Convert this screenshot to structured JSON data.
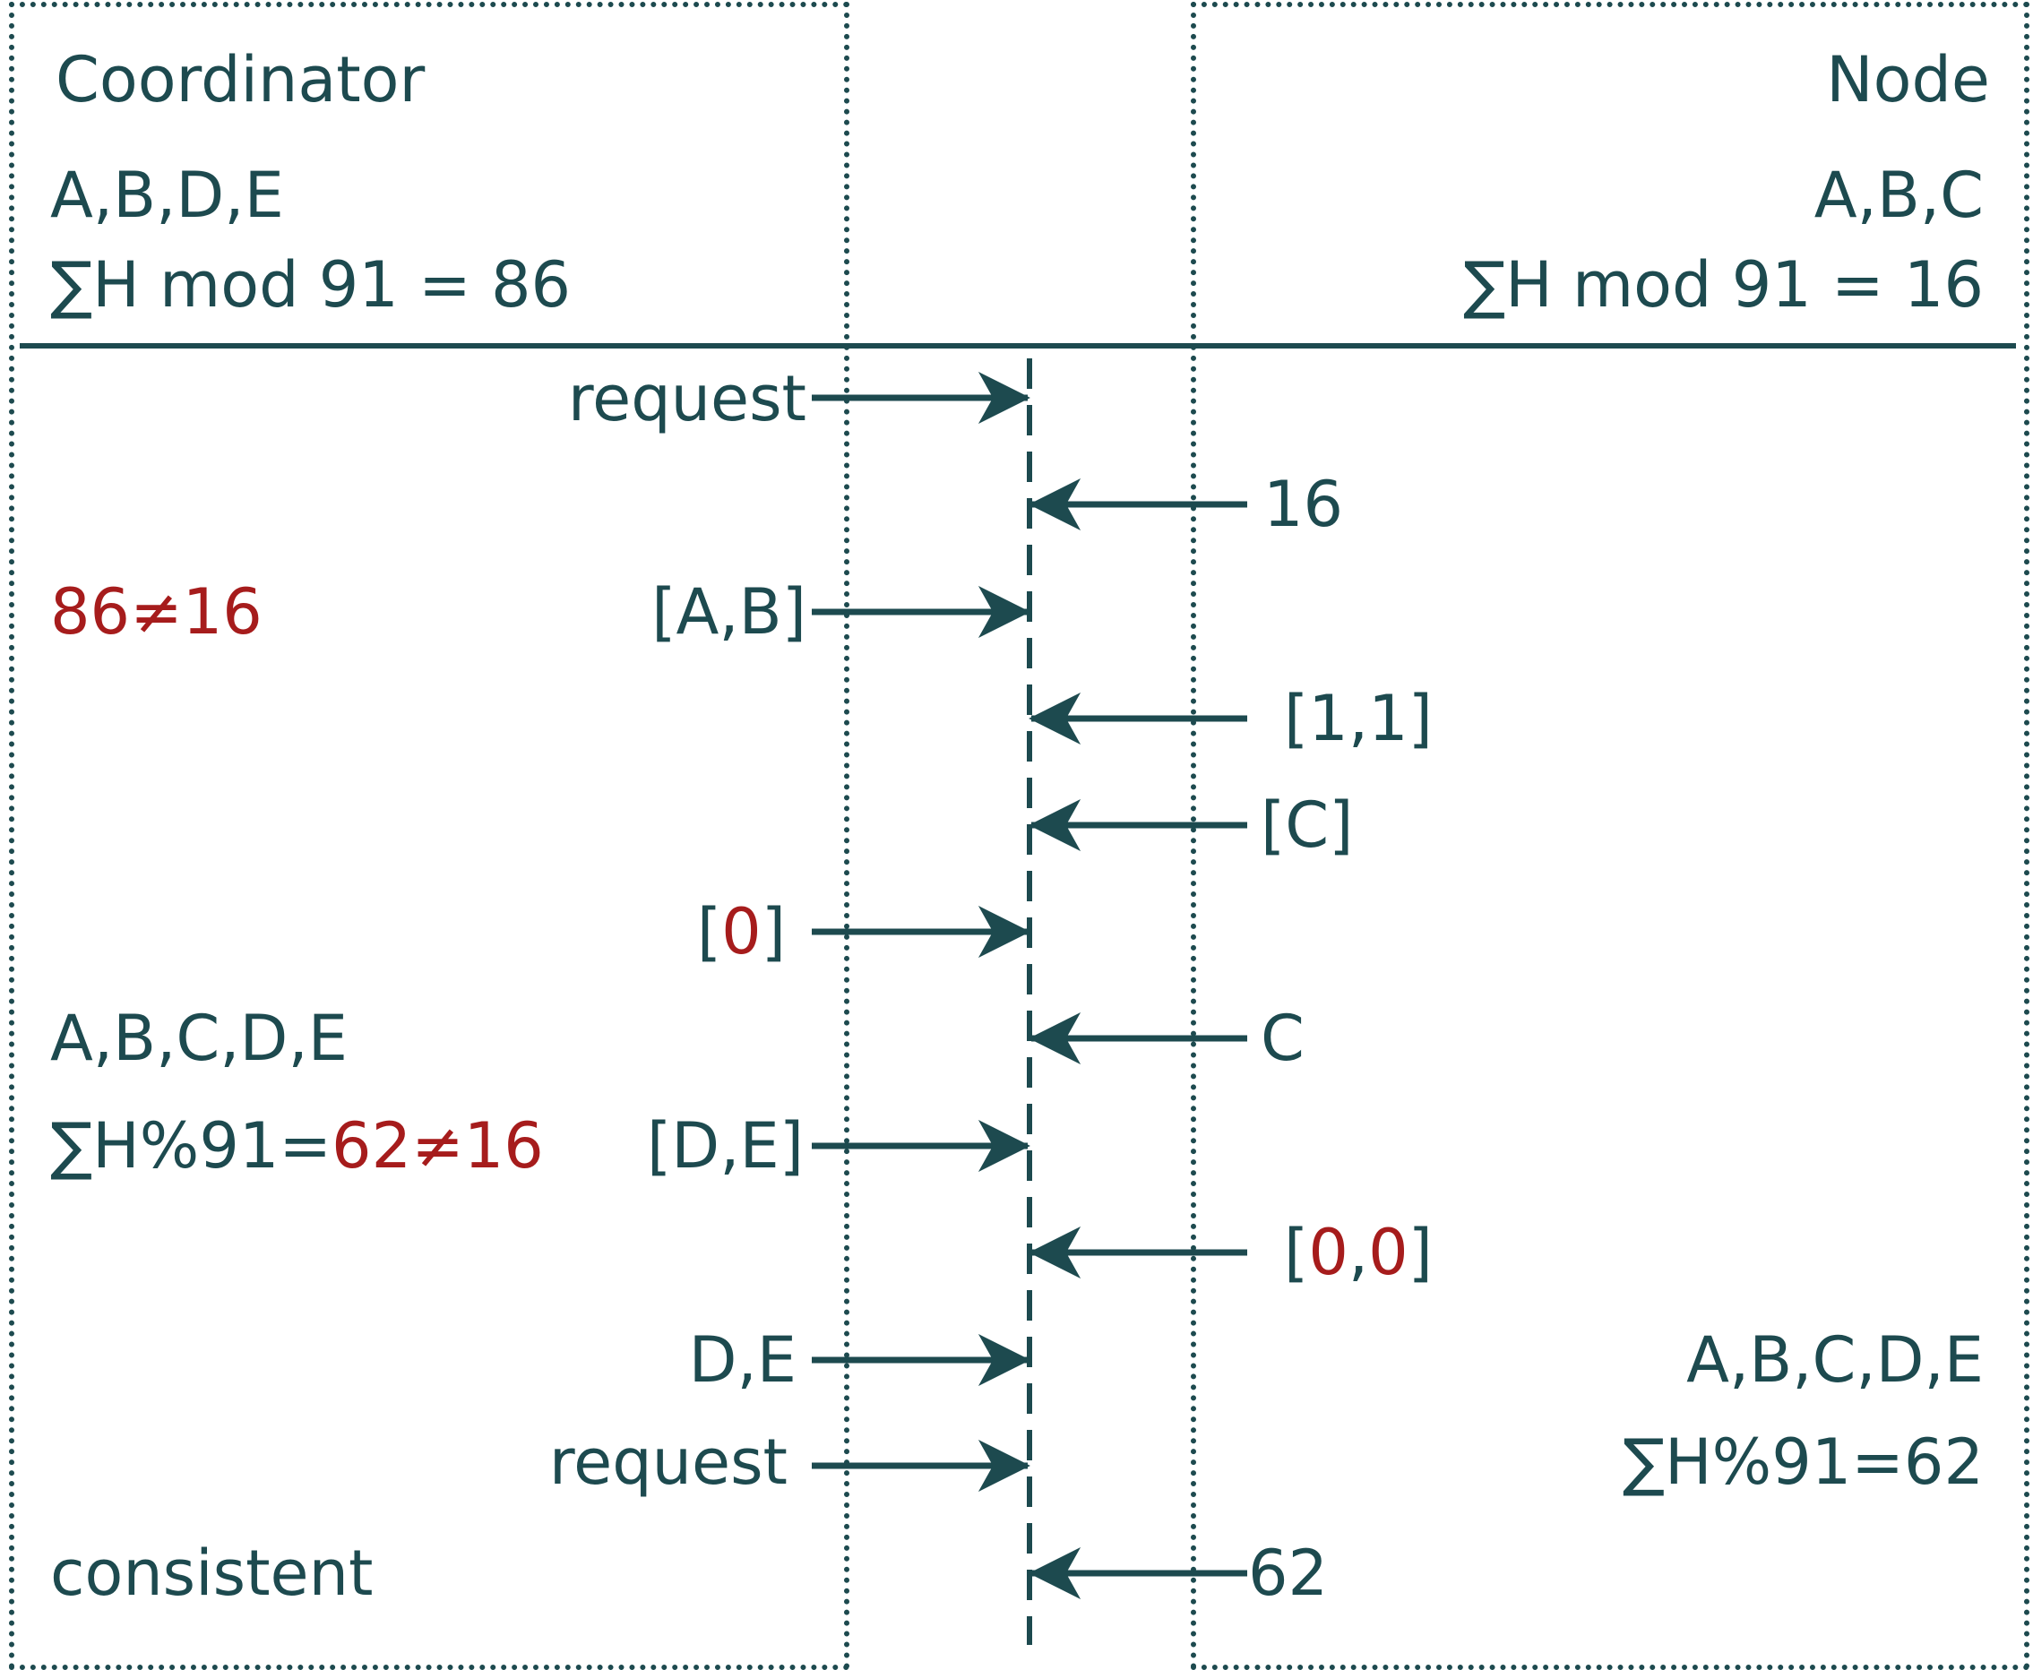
{
  "colors": {
    "ink": "#1d4a4f",
    "accent": "#a61c1c",
    "background": "#ffffff"
  },
  "coordinator": {
    "title": "Coordinator",
    "items": "A,B,D,E",
    "hash": "∑H mod 91 = 86"
  },
  "node": {
    "title": "Node",
    "items": "A,B,C",
    "hash": "∑H mod 91 = 16"
  },
  "messages": {
    "m1": "request",
    "m2": "16",
    "m3": "[A,B]",
    "m4": "[1,1]",
    "m5": "[C]",
    "m6": {
      "open": "[",
      "value": "0",
      "close": "]"
    },
    "m7": "C",
    "m8": "[D,E]",
    "m9": {
      "open": "[",
      "v1": "0",
      "sep": ",",
      "v2": "0",
      "close": "]"
    },
    "m10": "D,E",
    "m11": "request",
    "m12": "62"
  },
  "coordinator_notes": {
    "mismatch1": "86≠16",
    "merged_items": "A,B,C,D,E",
    "merged_hash_prefix": "∑H%91=",
    "merged_hash_value": "62≠16",
    "result": "consistent"
  },
  "node_notes": {
    "merged_items": "A,B,C,D,E",
    "merged_hash": "∑H%91=62"
  }
}
